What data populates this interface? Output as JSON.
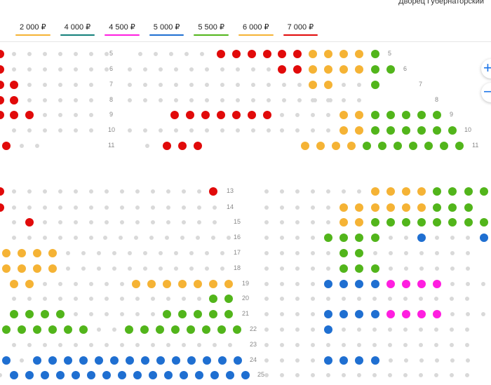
{
  "venue": "Дворец Губернаторский",
  "prices": [
    {
      "label": "2 000 ₽",
      "color": "#f5b335"
    },
    {
      "label": "4 000 ₽",
      "color": "#13807a"
    },
    {
      "label": "4 500 ₽",
      "color": "#ff1ee0"
    },
    {
      "label": "5 000 ₽",
      "color": "#1f6fd1"
    },
    {
      "label": "5 500 ₽",
      "color": "#52b51b"
    },
    {
      "label": "6 000 ₽",
      "color": "#f5b335"
    },
    {
      "label": "7 000 ₽",
      "color": "#e10a0a"
    }
  ],
  "zoom": {
    "in": "+",
    "out": "−"
  },
  "rows": [
    "5",
    "6",
    "7",
    "8",
    "9",
    "10",
    "11",
    "13",
    "14",
    "15",
    "16",
    "17",
    "18",
    "19",
    "20",
    "21",
    "22",
    "23",
    "24",
    "25"
  ]
}
